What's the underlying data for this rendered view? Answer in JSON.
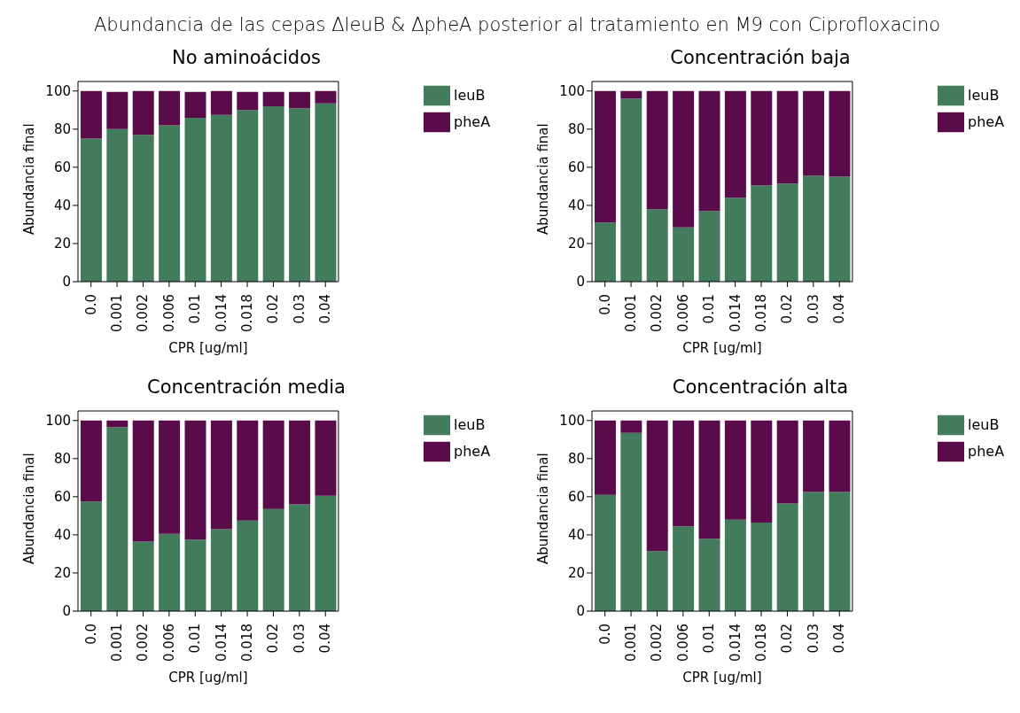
{
  "chart_data": [
    {
      "type": "bar",
      "stacked": true,
      "title": "No aminoácidos",
      "xlabel": "CPR [ug/ml]",
      "ylabel": "Abundancia final",
      "categories": [
        "0.0",
        "0.001",
        "0.002",
        "0.006",
        "0.01",
        "0.014",
        "0.018",
        "0.02",
        "0.03",
        "0.04"
      ],
      "series": [
        {
          "name": "leuB",
          "color": "#437c5c",
          "values": [
            75,
            80,
            77,
            82,
            86,
            87.5,
            90,
            92,
            91,
            93.5
          ]
        },
        {
          "name": "pheA",
          "color": "#5a0c4a",
          "values": [
            25,
            19.5,
            23,
            18,
            13.5,
            12.5,
            9.5,
            7.5,
            8.5,
            6.5
          ]
        }
      ],
      "ylim": [
        0,
        105
      ],
      "yticks": [
        0,
        20,
        40,
        60,
        80,
        100
      ],
      "legend": "right",
      "grid": false,
      "annotations": [
        "Abundancia de las cepas ΔleuB & ΔpheA posterior al tratamiento en M9 con Ciprofloxacino"
      ]
    },
    {
      "type": "bar",
      "stacked": true,
      "title": "Concentración baja",
      "xlabel": "CPR [ug/ml]",
      "ylabel": "Abundancia final",
      "categories": [
        "0.0",
        "0.001",
        "0.002",
        "0.006",
        "0.01",
        "0.014",
        "0.018",
        "0.02",
        "0.03",
        "0.04"
      ],
      "series": [
        {
          "name": "leuB",
          "color": "#437c5c",
          "values": [
            31,
            96,
            38,
            28.5,
            37,
            44,
            50.5,
            51.5,
            55.5,
            55
          ]
        },
        {
          "name": "pheA",
          "color": "#5a0c4a",
          "values": [
            69,
            4,
            62,
            71.5,
            63,
            56,
            49.5,
            48.5,
            44.5,
            45
          ]
        }
      ],
      "ylim": [
        0,
        105
      ],
      "yticks": [
        0,
        20,
        40,
        60,
        80,
        100
      ],
      "legend": "right",
      "grid": false
    },
    {
      "type": "bar",
      "stacked": true,
      "title": "Concentración media",
      "xlabel": "CPR [ug/ml]",
      "ylabel": "Abundancia final",
      "categories": [
        "0.0",
        "0.001",
        "0.002",
        "0.006",
        "0.01",
        "0.014",
        "0.018",
        "0.02",
        "0.03",
        "0.04"
      ],
      "series": [
        {
          "name": "leuB",
          "color": "#437c5c",
          "values": [
            57.5,
            96.5,
            36.5,
            40.5,
            37.5,
            43,
            47.5,
            53.5,
            56,
            60.5
          ]
        },
        {
          "name": "pheA",
          "color": "#5a0c4a",
          "values": [
            42.5,
            3.5,
            63.5,
            59.5,
            62.5,
            57,
            52.5,
            46.5,
            44,
            39.5
          ]
        }
      ],
      "ylim": [
        0,
        105
      ],
      "yticks": [
        0,
        20,
        40,
        60,
        80,
        100
      ],
      "legend": "right",
      "grid": false
    },
    {
      "type": "bar",
      "stacked": true,
      "title": "Concentración alta",
      "xlabel": "CPR [ug/ml]",
      "ylabel": "Abundancia final",
      "categories": [
        "0.0",
        "0.001",
        "0.002",
        "0.006",
        "0.01",
        "0.014",
        "0.018",
        "0.02",
        "0.03",
        "0.04"
      ],
      "series": [
        {
          "name": "leuB",
          "color": "#437c5c",
          "values": [
            61,
            93.5,
            31.5,
            44.5,
            38,
            48,
            46.5,
            56.5,
            62.5,
            62.5
          ]
        },
        {
          "name": "pheA",
          "color": "#5a0c4a",
          "values": [
            39,
            6.5,
            68.5,
            55.5,
            62,
            52,
            53.5,
            43.5,
            37.5,
            37.5
          ]
        }
      ],
      "ylim": [
        0,
        105
      ],
      "yticks": [
        0,
        20,
        40,
        60,
        80,
        100
      ],
      "legend": "right",
      "grid": false
    }
  ]
}
